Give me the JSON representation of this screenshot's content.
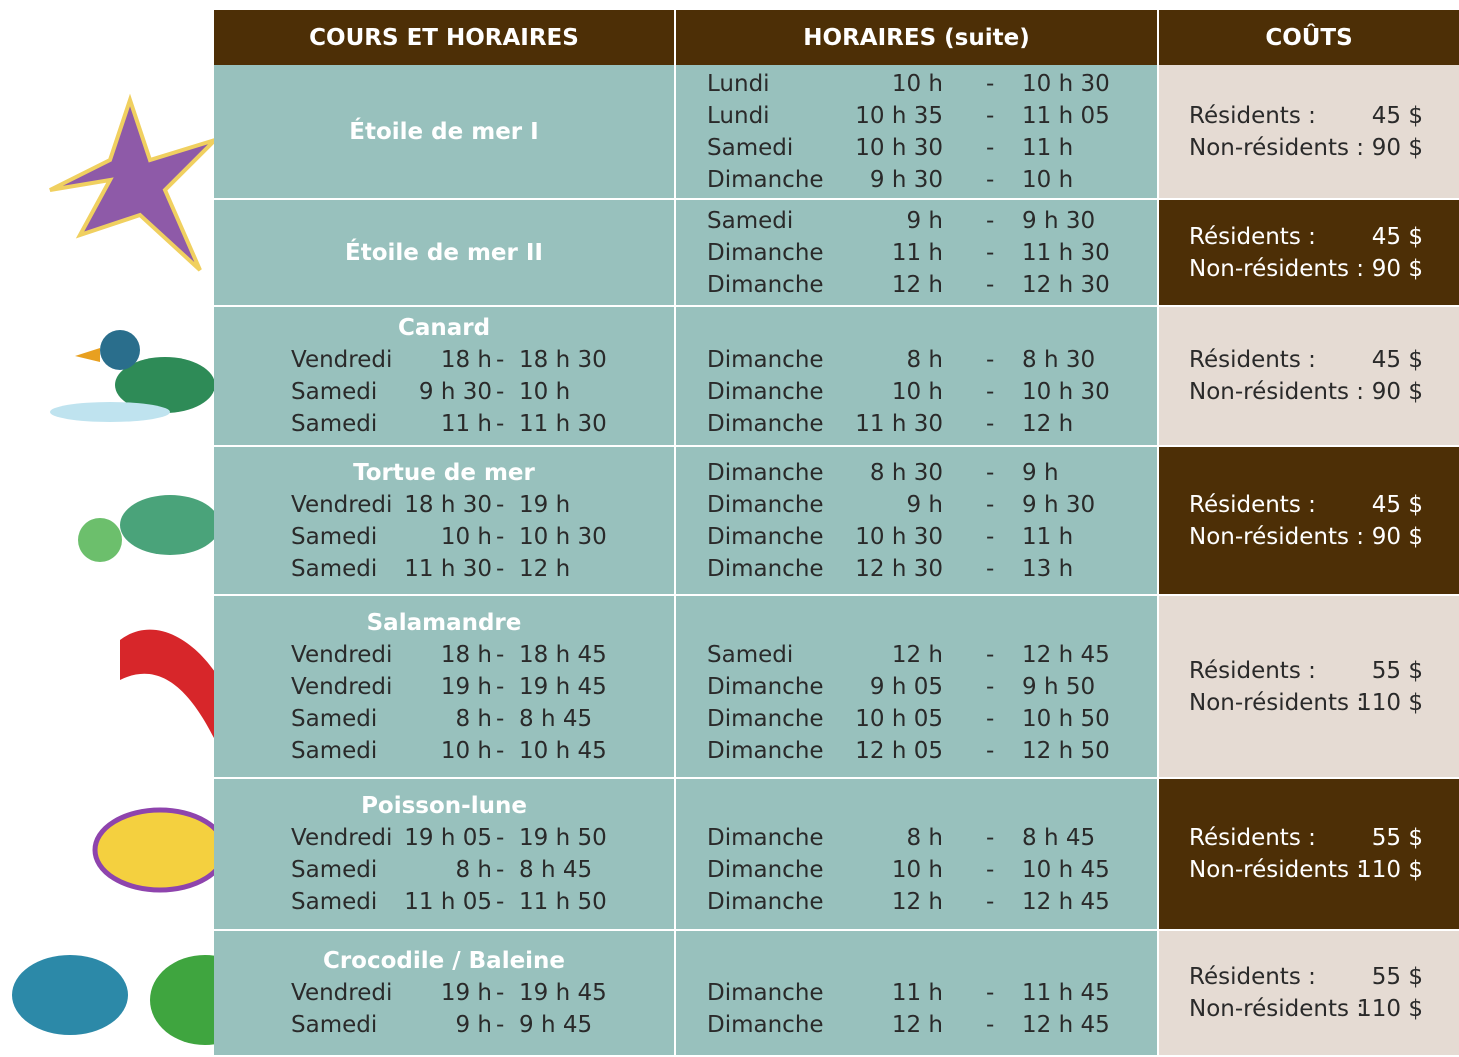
{
  "table": {
    "headers": [
      "COURS ET HORAIRES",
      "HORAIRES (suite)",
      "COÛTS"
    ],
    "rows": [
      {
        "course": "Étoile de mer I",
        "schedule": [],
        "schedule_cont": [
          [
            "Lundi",
            "10 h",
            "-",
            "10 h 30"
          ],
          [
            "Lundi",
            "10 h 35",
            "-",
            "11 h 05"
          ],
          [
            "Samedi",
            "10 h 30",
            "-",
            "11 h"
          ],
          [
            "Dimanche",
            "9 h 30",
            "-",
            "10 h"
          ]
        ],
        "costs": [
          [
            "Résidents :",
            "45 $"
          ],
          [
            "Non-résidents :",
            "90 $"
          ]
        ]
      },
      {
        "course": "Étoile de mer  II",
        "schedule": [],
        "schedule_cont": [
          [
            "Samedi",
            "9 h",
            "-",
            "9 h 30"
          ],
          [
            "Dimanche",
            "11 h",
            "-",
            "11 h 30"
          ],
          [
            "Dimanche",
            "12 h",
            "-",
            "12 h 30"
          ]
        ],
        "costs": [
          [
            "Résidents :",
            "45 $"
          ],
          [
            "Non-résidents :",
            "90 $"
          ]
        ]
      },
      {
        "course": "Canard",
        "schedule": [
          [
            "Vendredi",
            "18 h",
            "-",
            "18 h 30"
          ],
          [
            "Samedi",
            "9 h 30",
            "-",
            "10 h"
          ],
          [
            "Samedi",
            "11 h",
            "-",
            "11 h 30"
          ]
        ],
        "schedule_cont": [
          [
            "Dimanche",
            "8 h",
            "-",
            "8 h 30"
          ],
          [
            "Dimanche",
            "10 h",
            "-",
            "10 h 30"
          ],
          [
            "Dimanche",
            "11 h 30",
            "-",
            "12 h"
          ]
        ],
        "costs": [
          [
            "Résidents :",
            "45 $"
          ],
          [
            "Non-résidents :",
            "90 $"
          ]
        ]
      },
      {
        "course": "Tortue de mer",
        "schedule": [
          [
            "Vendredi",
            "18 h 30",
            "-",
            "19 h"
          ],
          [
            "Samedi",
            "10 h",
            "-",
            "10 h 30"
          ],
          [
            "Samedi",
            "11 h 30",
            "-",
            "12 h"
          ]
        ],
        "schedule_cont": [
          [
            "Dimanche",
            "8 h 30",
            "-",
            "9 h"
          ],
          [
            "Dimanche",
            "9 h",
            "-",
            "9 h 30"
          ],
          [
            "Dimanche",
            "10 h 30",
            "-",
            "11 h"
          ],
          [
            "Dimanche",
            "12 h 30",
            "-",
            "13 h"
          ]
        ],
        "costs": [
          [
            "Résidents :",
            "45 $"
          ],
          [
            "Non-résidents :",
            "90 $"
          ]
        ]
      },
      {
        "course": "Salamandre",
        "schedule": [
          [
            "Vendredi",
            "18 h",
            "-",
            "18 h 45"
          ],
          [
            "Vendredi",
            "19 h",
            "-",
            "19 h 45"
          ],
          [
            "Samedi",
            "8 h",
            "-",
            "8 h 45"
          ],
          [
            "Samedi",
            "10 h",
            "-",
            "10 h 45"
          ]
        ],
        "schedule_cont": [
          [
            "Samedi",
            "12 h",
            "-",
            "12 h 45"
          ],
          [
            "Dimanche",
            "9 h 05",
            "-",
            "9 h 50"
          ],
          [
            "Dimanche",
            "10 h 05",
            "-",
            "10 h 50"
          ],
          [
            "Dimanche",
            "12 h 05",
            "-",
            "12 h 50"
          ]
        ],
        "costs": [
          [
            "Résidents :",
            "55 $"
          ],
          [
            "Non-résidents :",
            "110 $"
          ]
        ]
      },
      {
        "course": "Poisson-lune",
        "schedule": [
          [
            "Vendredi",
            "19 h 05",
            "-",
            "19 h 50"
          ],
          [
            "Samedi",
            "8 h",
            "-",
            "8 h 45"
          ],
          [
            "Samedi",
            "11 h 05",
            "-",
            "11 h 50"
          ]
        ],
        "schedule_cont": [
          [
            "Dimanche",
            "8 h",
            "-",
            "8 h 45"
          ],
          [
            "Dimanche",
            "10 h",
            "-",
            "10 h 45"
          ],
          [
            "Dimanche",
            "12 h",
            "-",
            "12 h 45"
          ]
        ],
        "costs": [
          [
            "Résidents :",
            "55 $"
          ],
          [
            "Non-résidents :",
            "110 $"
          ]
        ]
      },
      {
        "course": "Crocodile / Baleine",
        "schedule": [
          [
            "Vendredi",
            "19 h",
            "-",
            "19 h 45"
          ],
          [
            "Samedi",
            "9 h",
            "-",
            "9 h 45"
          ]
        ],
        "schedule_cont": [
          [
            "Dimanche",
            "11 h",
            "-",
            "11 h 45"
          ],
          [
            "Dimanche",
            "12 h",
            "-",
            "12 h 45"
          ]
        ],
        "costs": [
          [
            "Résidents :",
            "55 $"
          ],
          [
            "Non-résidents :",
            "110 $"
          ]
        ]
      }
    ]
  }
}
